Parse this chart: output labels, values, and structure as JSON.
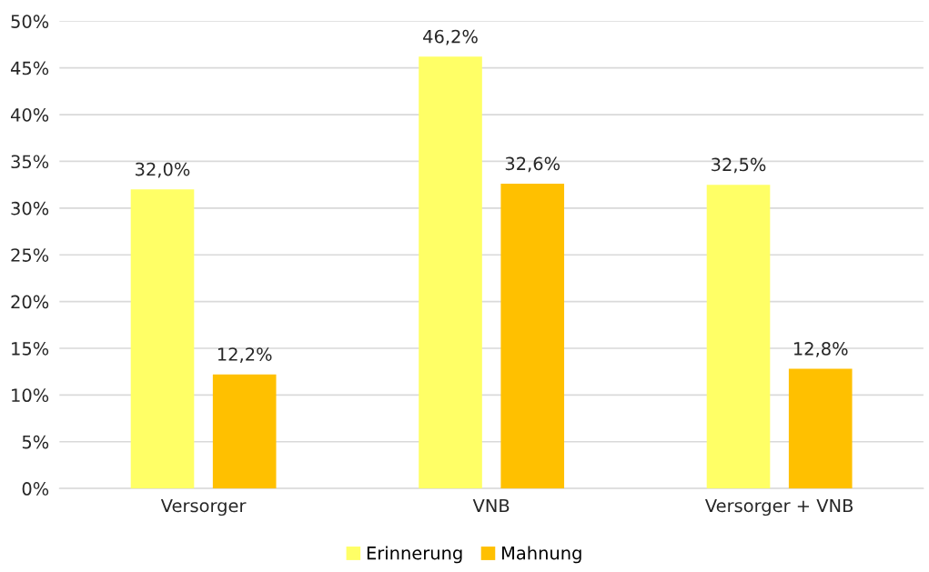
{
  "chart_data": {
    "type": "bar",
    "categories": [
      "Versorger",
      "VNB",
      "Versorger + VNB"
    ],
    "series": [
      {
        "name": "Erinnerung",
        "color": "#ffff66",
        "values": [
          32.0,
          46.2,
          32.5
        ],
        "value_labels": [
          "32,0%",
          "46,2%",
          "32,5%"
        ]
      },
      {
        "name": "Mahnung",
        "color": "#ffc000",
        "values": [
          12.2,
          32.6,
          12.8
        ],
        "value_labels": [
          "12,2%",
          "32,6%",
          "12,8%"
        ]
      }
    ],
    "ylim": [
      0,
      50
    ],
    "yticks": [
      {
        "value": 0,
        "label": "0%"
      },
      {
        "value": 5,
        "label": "5%"
      },
      {
        "value": 10,
        "label": "10%"
      },
      {
        "value": 15,
        "label": "15%"
      },
      {
        "value": 20,
        "label": "20%"
      },
      {
        "value": 25,
        "label": "25%"
      },
      {
        "value": 30,
        "label": "30%"
      },
      {
        "value": 35,
        "label": "35%"
      },
      {
        "value": 40,
        "label": "40%"
      },
      {
        "value": 45,
        "label": "45%"
      },
      {
        "value": 50,
        "label": "50%"
      }
    ],
    "grid": "y",
    "legend": "bottom"
  }
}
